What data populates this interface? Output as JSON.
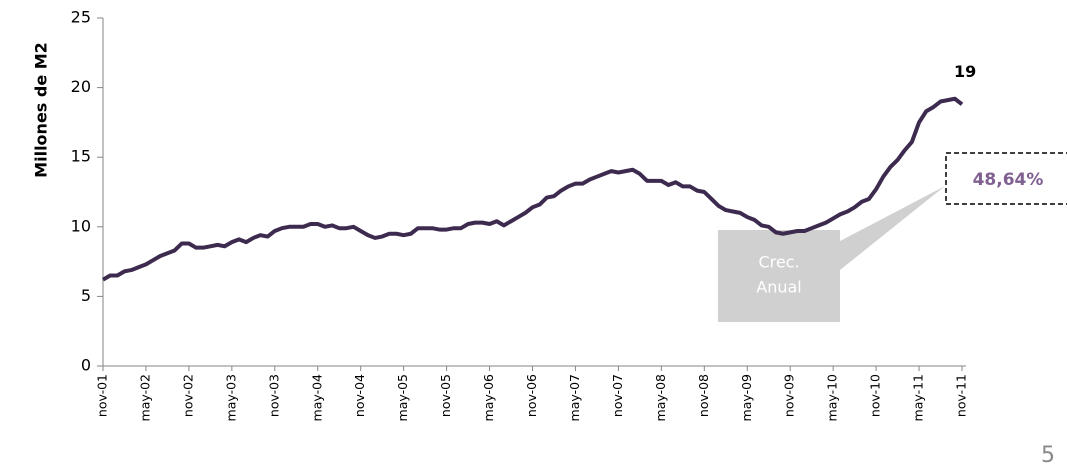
{
  "chart_data": {
    "type": "line",
    "y_label": "Millones de M2",
    "categories": [
      "nov-01",
      null,
      null,
      null,
      null,
      null,
      "may-02",
      null,
      null,
      null,
      null,
      null,
      "nov-02",
      null,
      null,
      null,
      null,
      null,
      "may-03",
      null,
      null,
      null,
      null,
      null,
      "nov-03",
      null,
      null,
      null,
      null,
      null,
      "may-04",
      null,
      null,
      null,
      null,
      null,
      "nov-04",
      null,
      null,
      null,
      null,
      null,
      "may-05",
      null,
      null,
      null,
      null,
      null,
      "nov-05",
      null,
      null,
      null,
      null,
      null,
      "may-06",
      null,
      null,
      null,
      null,
      null,
      "nov-06",
      null,
      null,
      null,
      null,
      null,
      "may-07",
      null,
      null,
      null,
      null,
      null,
      "nov-07",
      null,
      null,
      null,
      null,
      null,
      "may-08",
      null,
      null,
      null,
      null,
      null,
      "nov-08",
      null,
      null,
      null,
      null,
      null,
      "may-09",
      null,
      null,
      null,
      null,
      null,
      "nov-09",
      null,
      null,
      null,
      null,
      null,
      "may-10",
      null,
      null,
      null,
      null,
      null,
      "nov-10",
      null,
      null,
      null,
      null,
      null,
      "may-11",
      null,
      null,
      null,
      null,
      null,
      "nov-11"
    ],
    "values": [
      6.2,
      6.5,
      6.5,
      6.8,
      6.9,
      7.1,
      7.3,
      7.6,
      7.9,
      8.1,
      8.3,
      8.8,
      8.8,
      8.5,
      8.5,
      8.6,
      8.7,
      8.6,
      8.9,
      9.1,
      8.9,
      9.2,
      9.4,
      9.3,
      9.7,
      9.9,
      10.0,
      10.0,
      10.0,
      10.2,
      10.2,
      10.0,
      10.1,
      9.9,
      9.9,
      10.0,
      9.7,
      9.4,
      9.2,
      9.3,
      9.5,
      9.5,
      9.4,
      9.5,
      9.9,
      9.9,
      9.9,
      9.8,
      9.8,
      9.9,
      9.9,
      10.2,
      10.3,
      10.3,
      10.2,
      10.4,
      10.1,
      10.4,
      10.7,
      11.0,
      11.4,
      11.6,
      12.1,
      12.2,
      12.6,
      12.9,
      13.1,
      13.1,
      13.4,
      13.6,
      13.8,
      14.0,
      13.9,
      14.0,
      14.1,
      13.8,
      13.3,
      13.3,
      13.3,
      13.0,
      13.2,
      12.9,
      12.9,
      12.6,
      12.5,
      12.0,
      11.5,
      11.2,
      11.1,
      11.0,
      10.7,
      10.5,
      10.1,
      10.0,
      9.6,
      9.5,
      9.6,
      9.7,
      9.7,
      9.9,
      10.1,
      10.3,
      10.6,
      10.9,
      11.1,
      11.4,
      11.8,
      12.0,
      12.7,
      13.6,
      14.3,
      14.8,
      15.5,
      16.1,
      17.5,
      18.3,
      18.6,
      19.0,
      19.1,
      19.2,
      18.8
    ],
    "color": "#3d2b4f",
    "ylim": [
      0,
      25
    ],
    "yticks": [
      0,
      5,
      10,
      15,
      20,
      25
    ],
    "end_label": "19",
    "callout": {
      "lines": [
        "Crec.",
        "Anual"
      ],
      "value": "48,64%"
    }
  },
  "page_number": "5"
}
